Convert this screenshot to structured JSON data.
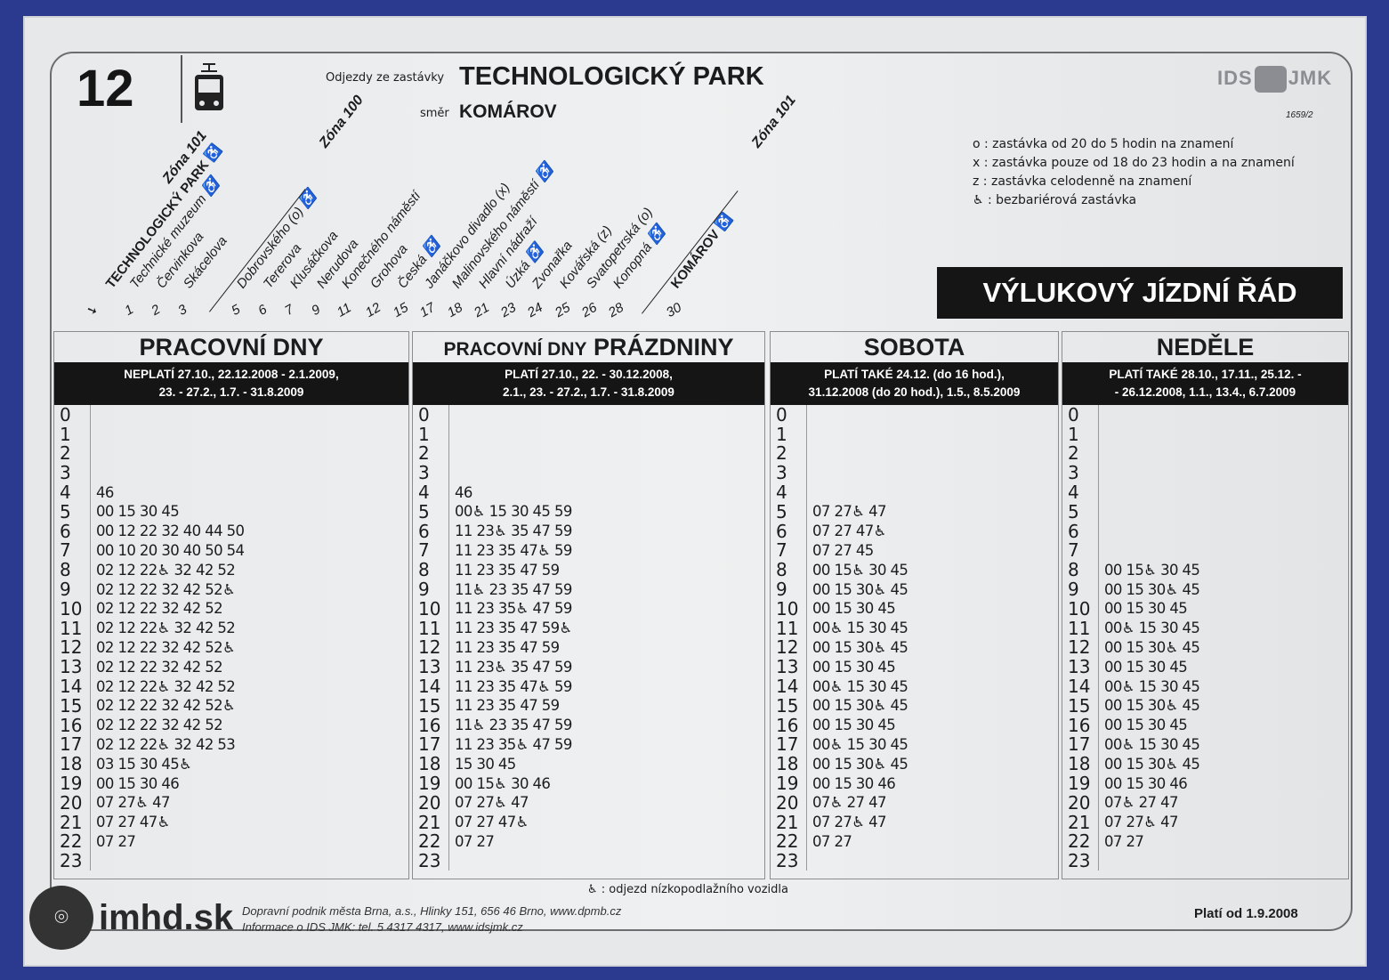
{
  "header": {
    "line": "12",
    "departures_label": "Odjezdy ze zastávky",
    "stop": "TECHNOLOGICKÝ PARK",
    "direction_label": "směr",
    "direction": "KOMÁROV",
    "logo": "IDS JMK",
    "code": "1659/2",
    "notice": "VÝLUKOVÝ JÍZDNÍ ŘÁD"
  },
  "legend": [
    "o : zastávka od 20 do 5 hodin na znamení",
    "x : zastávka pouze od 18 do 23 hodin a na znamení",
    "z : zastávka celodenně na znamení",
    "♿ : bezbariérová zastávka"
  ],
  "zones": [
    "Zóna 101",
    "Zóna 100",
    "Zóna 101"
  ],
  "stations": [
    {
      "min": "",
      "name": "TECHNOLOGICKÝ PARK ♿",
      "bold": true
    },
    {
      "min": "1",
      "name": "Technické muzeum ♿"
    },
    {
      "min": "2",
      "name": "Červinkova"
    },
    {
      "min": "3",
      "name": "Skácelova"
    },
    {
      "min": "5",
      "name": "Dobrovského (o) ♿"
    },
    {
      "min": "6",
      "name": "Tererova"
    },
    {
      "min": "7",
      "name": "Klusáčkova"
    },
    {
      "min": "9",
      "name": "Nerudova"
    },
    {
      "min": "11",
      "name": "Konečného náměstí"
    },
    {
      "min": "12",
      "name": "Grohova"
    },
    {
      "min": "15",
      "name": "Česká ♿"
    },
    {
      "min": "17",
      "name": "Janáčkovo divadlo (x)"
    },
    {
      "min": "18",
      "name": "Malinovského náměstí ♿"
    },
    {
      "min": "21",
      "name": "Hlavní nádraží"
    },
    {
      "min": "23",
      "name": "Úzká ♿"
    },
    {
      "min": "24",
      "name": "Zvonařka"
    },
    {
      "min": "25",
      "name": "Kovářská (z)"
    },
    {
      "min": "26",
      "name": "Svatopetrská (o)"
    },
    {
      "min": "28",
      "name": "Konopná ♿"
    },
    {
      "min": "30",
      "name": "KOMÁROV ♿",
      "bold": true
    }
  ],
  "columns": [
    {
      "title": "PRACOVNÍ DNY",
      "title_small": "",
      "band": [
        "NEPLATÍ 27.10., 22.12.2008 - 2.1.2009,",
        "23. - 27.2., 1.7. - 31.8.2009"
      ],
      "rows": [
        "",
        "",
        "",
        "",
        "46",
        "00 15 30 45",
        "00 12 22 32 40 44 50",
        "00 10 20 30 40 50 54",
        "02 12 22♿ 32 42 52",
        "02 12 22 32 42 52♿",
        "02 12 22 32 42 52",
        "02 12 22♿ 32 42 52",
        "02 12 22 32 42 52♿",
        "02 12 22 32 42 52",
        "02 12 22♿ 32 42 52",
        "02 12 22 32 42 52♿",
        "02 12 22 32 42 52",
        "02 12 22♿ 32 42 53",
        "03 15 30 45♿",
        "00 15 30 46",
        "07 27♿ 47",
        "07 27 47♿",
        "07 27",
        ""
      ]
    },
    {
      "title": "PRÁZDNINY",
      "title_small": "PRACOVNÍ DNY",
      "band": [
        "PLATÍ 27.10., 22. - 30.12.2008,",
        "2.1., 23. - 27.2., 1.7. - 31.8.2009"
      ],
      "rows": [
        "",
        "",
        "",
        "",
        "46",
        "00♿ 15 30 45 59",
        "11 23♿ 35 47 59",
        "11 23 35 47♿ 59",
        "11 23 35 47 59",
        "11♿ 23 35 47 59",
        "11 23 35♿ 47 59",
        "11 23 35 47 59♿",
        "11 23 35 47 59",
        "11 23♿ 35 47 59",
        "11 23 35 47♿ 59",
        "11 23 35 47 59",
        "11♿ 23 35 47 59",
        "11 23 35♿ 47 59",
        "15 30 45",
        "00 15♿ 30 46",
        "07 27♿ 47",
        "07 27 47♿",
        "07 27",
        ""
      ]
    },
    {
      "title": "SOBOTA",
      "title_small": "",
      "band": [
        "PLATÍ TAKÉ 24.12. (do 16 hod.),",
        "31.12.2008 (do 20 hod.), 1.5., 8.5.2009"
      ],
      "rows": [
        "",
        "",
        "",
        "",
        "",
        "07 27♿ 47",
        "07 27 47♿",
        "07 27 45",
        "00 15♿ 30 45",
        "00 15 30♿ 45",
        "00 15 30 45",
        "00♿ 15 30 45",
        "00 15 30♿ 45",
        "00 15 30 45",
        "00♿ 15 30 45",
        "00 15 30♿ 45",
        "00 15 30 45",
        "00♿ 15 30 45",
        "00 15 30♿ 45",
        "00 15 30 46",
        "07♿ 27 47",
        "07 27♿ 47",
        "07 27",
        ""
      ]
    },
    {
      "title": "NEDĚLE",
      "title_small": "",
      "band": [
        "PLATÍ TAKÉ 28.10., 17.11., 25.12. -",
        "- 26.12.2008, 1.1., 13.4., 6.7.2009"
      ],
      "rows": [
        "",
        "",
        "",
        "",
        "",
        "",
        "",
        "",
        "00 15♿ 30 45",
        "00 15 30♿ 45",
        "00 15 30 45",
        "00♿ 15 30 45",
        "00 15 30♿ 45",
        "00 15 30 45",
        "00♿ 15 30 45",
        "00 15 30♿ 45",
        "00 15 30 45",
        "00♿ 15 30 45",
        "00 15 30♿ 45",
        "00 15 30 46",
        "07♿ 27 47",
        "07 27♿ 47",
        "07 27",
        ""
      ]
    }
  ],
  "footer": {
    "note": "♿ : odjezd nízkopodlažního vozidla",
    "line1": "Dopravní podnik města Brna, a.s., Hlinky 151, 656 46 Brno, www.dpmb.cz",
    "line2": "Informace o IDS JMK: tel. 5 4317 4317, www.idsjmk.cz",
    "valid": "Platí od 1.9.2008"
  },
  "watermark": "imhd.sk",
  "colors": {
    "frame": "#2b3a8e",
    "band": "#151515",
    "paper": "#e6e8ea"
  }
}
